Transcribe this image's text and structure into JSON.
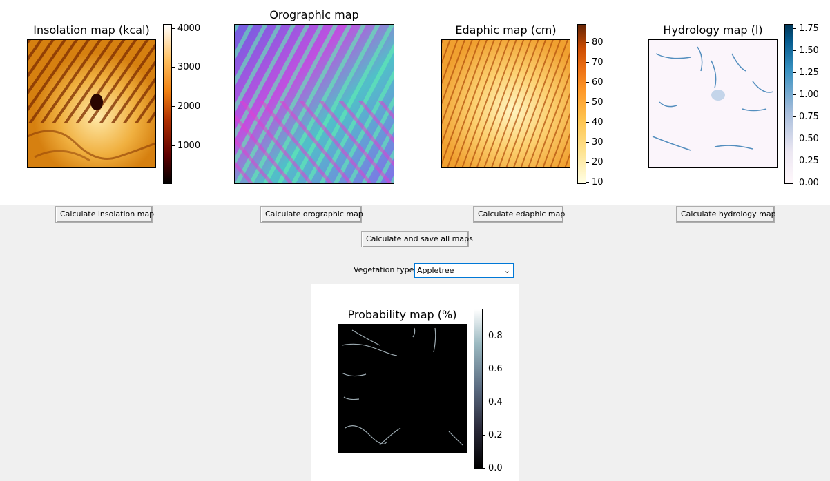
{
  "maps": {
    "insolation": {
      "title": "Insolation map (kcal)",
      "colorbar": {
        "colormap": "afmhot",
        "min": 0,
        "max": 4200,
        "ticks": [
          "4000",
          "3000",
          "2000",
          "1000"
        ]
      }
    },
    "orographic": {
      "title": "Orographic map"
    },
    "edaphic": {
      "title": "Edaphic map (cm)",
      "colorbar": {
        "colormap": "YlOrBr",
        "min": 8,
        "max": 88,
        "ticks": [
          "80",
          "70",
          "60",
          "50",
          "40",
          "30",
          "20",
          "10"
        ]
      }
    },
    "hydrology": {
      "title": "Hydrology map (l)",
      "colorbar": {
        "colormap": "PuBu",
        "min": 0,
        "max": 1.8,
        "ticks": [
          "1.75",
          "1.50",
          "1.25",
          "1.00",
          "0.75",
          "0.50",
          "0.25",
          "0.00"
        ]
      }
    },
    "probability": {
      "title": "Probability map (%)",
      "colorbar": {
        "colormap": "bone",
        "min": 0,
        "max": 0.96,
        "ticks": [
          "0.8",
          "0.6",
          "0.4",
          "0.2",
          "0.0"
        ]
      }
    }
  },
  "buttons": {
    "insolation": "Calculate insolation map",
    "orographic": "Calculate orographic map",
    "edaphic": "Calculate edaphic map",
    "hydrology": "Calculate hydrology map",
    "all": "Calculate and save all maps"
  },
  "vegetation": {
    "label": "Vegetation type:",
    "selected": "Appletree"
  },
  "colors": {
    "background": "#f0f0f0",
    "plot_background": "#ffffff",
    "focus_border": "#0078d7"
  }
}
